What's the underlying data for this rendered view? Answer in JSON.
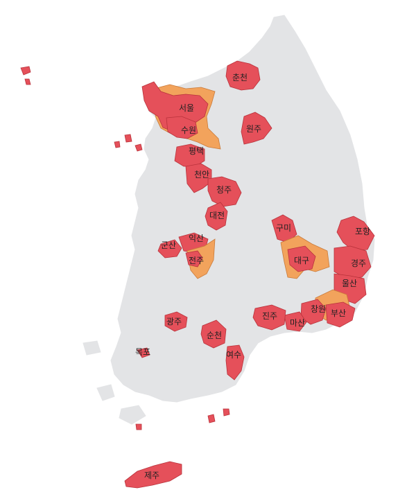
{
  "colors": {
    "land": "#e3e4e6",
    "high": "#e5505a",
    "medium": "#f2a35c",
    "border": "#b8323b",
    "label": "#222222"
  },
  "labels": {
    "chuncheon": "춘천",
    "seoul": "서울",
    "suwon": "수원",
    "wonju": "원주",
    "pyeongtaek": "평택",
    "cheonan": "천안",
    "cheongju": "청주",
    "daejeon": "대전",
    "gumi": "구미",
    "pohang": "포항",
    "iksan": "익산",
    "gunsan": "군산",
    "jeonju": "전주",
    "daegu": "대구",
    "gyeongju": "경주",
    "ulsan": "울산",
    "changwon": "창원",
    "busan": "부산",
    "jinju": "진주",
    "masan": "마산",
    "gwangju": "광주",
    "suncheon": "순천",
    "mokpo": "목포",
    "yeosu": "여수",
    "jeju": "제주"
  }
}
